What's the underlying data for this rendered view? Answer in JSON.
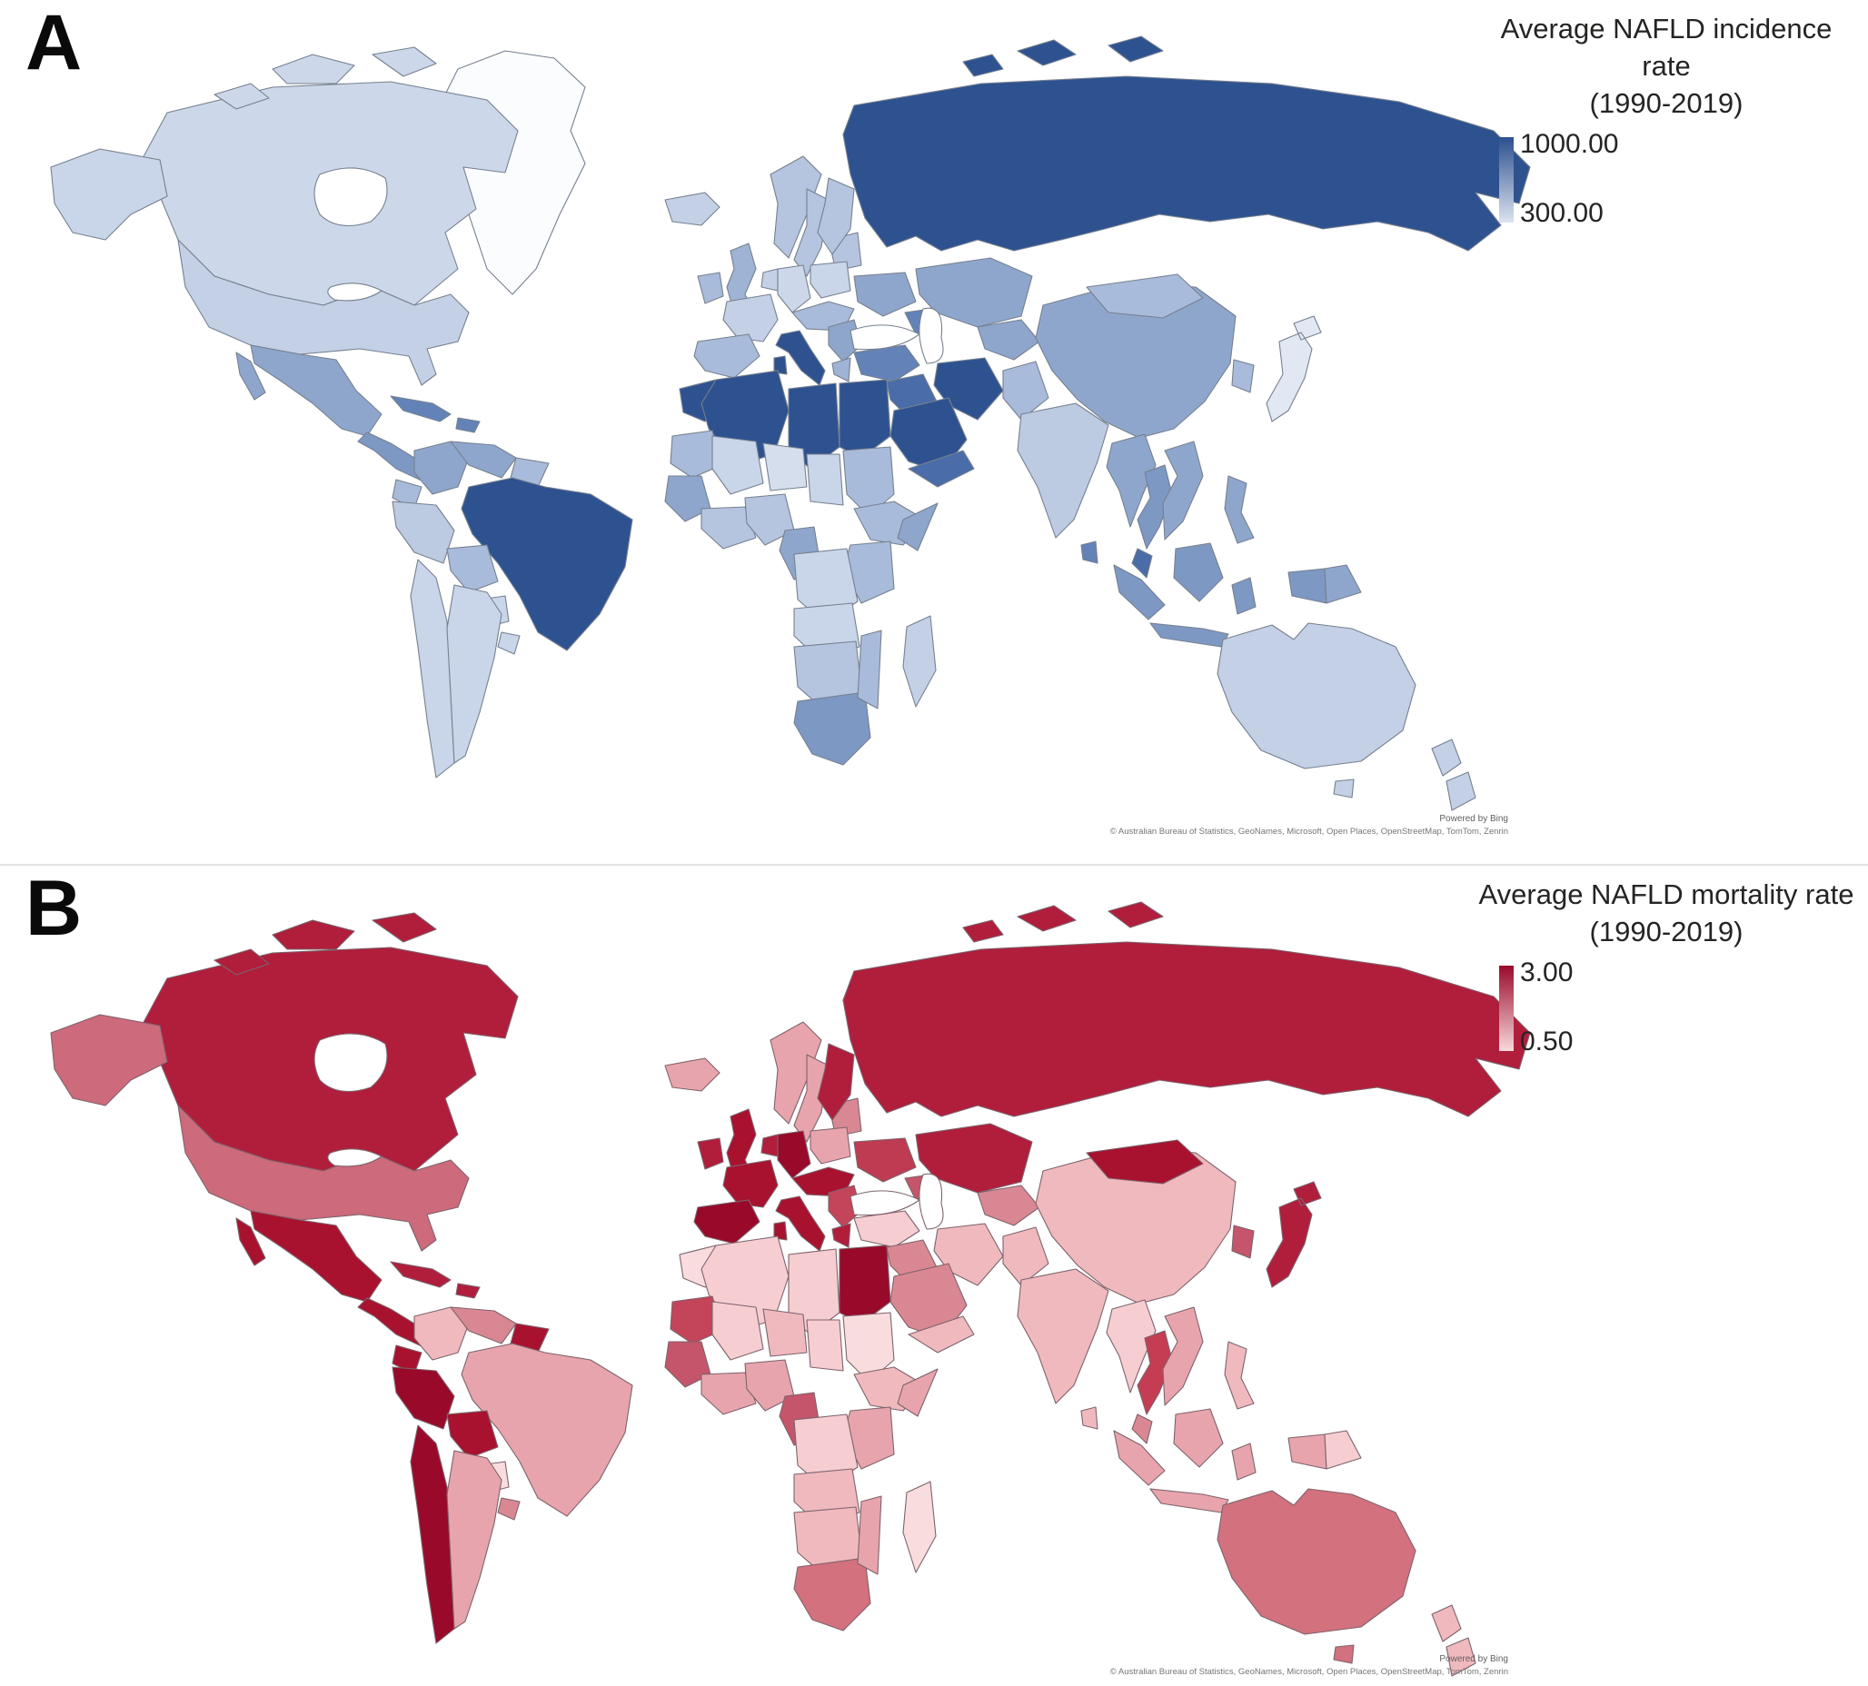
{
  "panels": {
    "a": {
      "label": "A",
      "border_color": "#76808f",
      "legend": {
        "title_line1": "Average NAFLD incidence rate",
        "title_line2": "(1990-2019)",
        "max_label": "1000.00",
        "min_label": "300.00",
        "colorbar_top": "#2B4F8E",
        "colorbar_bottom": "#DCE3F0"
      },
      "attribution": {
        "powered_by": "Powered by Bing",
        "copyright": "© Australian Bureau of Statistics, GeoNames, Microsoft, Open Places, OpenStreetMap, TomTom, Zenrin"
      }
    },
    "b": {
      "label": "B",
      "border_color": "#7d636c",
      "legend": {
        "title_line1": "Average NAFLD mortality rate",
        "title_line2": "(1990-2019)",
        "max_label": "3.00",
        "min_label": "0.50",
        "colorbar_top": "#99092A",
        "colorbar_bottom": "#F7D9DB"
      },
      "attribution": {
        "powered_by": "Powered by Bing",
        "copyright": "© Australian Bureau of Statistics, GeoNames, Microsoft, Open Places, OpenStreetMap, TomTom, Zenrin"
      }
    }
  },
  "map_regions": [
    {
      "id": "russia",
      "name": "Russia",
      "fill_a": "#2E5290",
      "fill_b": "#B01E3C"
    },
    {
      "id": "svalbard_arctic",
      "name": "Russian Arctic islands",
      "fill_a": "#2E5290",
      "fill_b": "#B01E3C"
    },
    {
      "id": "kazakhstan",
      "name": "Kazakhstan",
      "fill_a": "#8FA6CC",
      "fill_b": "#B01E3C"
    },
    {
      "id": "ukraine",
      "name": "Ukraine",
      "fill_a": "#8FA6CC",
      "fill_b": "#BE3B52"
    },
    {
      "id": "baltics_belarus",
      "name": "Baltics & Belarus",
      "fill_a": "#B5C4DF",
      "fill_b": "#D98893"
    },
    {
      "id": "caucasus",
      "name": "Caucasus",
      "fill_a": "#6383B8",
      "fill_b": "#C4556A"
    },
    {
      "id": "centralasia",
      "name": "Central Asia",
      "fill_a": "#8FA6CC",
      "fill_b": "#D98893"
    },
    {
      "id": "turkey",
      "name": "Turkey",
      "fill_a": "#6383B8",
      "fill_b": "#F6CDD1"
    },
    {
      "id": "syria_iraq",
      "name": "Syria & Iraq",
      "fill_a": "#4A6CA8",
      "fill_b": "#D98893"
    },
    {
      "id": "iran",
      "name": "Iran",
      "fill_a": "#2E5290",
      "fill_b": "#F0B9BE"
    },
    {
      "id": "afghan_pak",
      "name": "Afghanistan & Pakistan",
      "fill_a": "#A9BBDA",
      "fill_b": "#F0B9BE"
    },
    {
      "id": "saudi",
      "name": "Saudi Arabia",
      "fill_a": "#2E5290",
      "fill_b": "#D98893"
    },
    {
      "id": "yemen_oman",
      "name": "Yemen & Oman",
      "fill_a": "#4A6CA8",
      "fill_b": "#F0B9BE"
    },
    {
      "id": "china",
      "name": "China",
      "fill_a": "#8FA6CC",
      "fill_b": "#F0B9BE"
    },
    {
      "id": "mongolia",
      "name": "Mongolia",
      "fill_a": "#A9BBDA",
      "fill_b": "#A8122F"
    },
    {
      "id": "korea",
      "name": "Korea",
      "fill_a": "#A9BBDA",
      "fill_b": "#C4556A"
    },
    {
      "id": "japan",
      "name": "Japan",
      "fill_a": "#E2E8F3",
      "fill_b": "#B01E3C"
    },
    {
      "id": "india",
      "name": "India",
      "fill_a": "#BCCBE2",
      "fill_b": "#F0B9BE"
    },
    {
      "id": "srilanka",
      "name": "Sri Lanka",
      "fill_a": "#6383B8",
      "fill_b": "#F0B9BE"
    },
    {
      "id": "myanmar",
      "name": "Myanmar",
      "fill_a": "#8FA6CC",
      "fill_b": "#F6CDD1"
    },
    {
      "id": "thailand",
      "name": "Thailand",
      "fill_a": "#7E98C4",
      "fill_b": "#C43D52"
    },
    {
      "id": "vietnam_laos",
      "name": "Vietnam, Laos & Cambodia",
      "fill_a": "#8FA6CC",
      "fill_b": "#E8A4AC"
    },
    {
      "id": "malaysia",
      "name": "Malaysia",
      "fill_a": "#4A6CA8",
      "fill_b": "#D98893"
    },
    {
      "id": "indonesia",
      "name": "Indonesia",
      "fill_a": "#7E98C4",
      "fill_b": "#E8A4AC"
    },
    {
      "id": "png",
      "name": "Papua New Guinea",
      "fill_a": "#8FA6CC",
      "fill_b": "#F6CDD1"
    },
    {
      "id": "philippines",
      "name": "Philippines",
      "fill_a": "#8FA6CC",
      "fill_b": "#F0B9BE"
    },
    {
      "id": "australia",
      "name": "Australia",
      "fill_a": "#C4D0E6",
      "fill_b": "#D4717E"
    },
    {
      "id": "new_zealand",
      "name": "New Zealand",
      "fill_a": "#C4D0E6",
      "fill_b": "#F0B9BE"
    },
    {
      "id": "norway",
      "name": "Norway",
      "fill_a": "#B5C4DF",
      "fill_b": "#E8A4AC"
    },
    {
      "id": "sweden",
      "name": "Sweden",
      "fill_a": "#B5C4DF",
      "fill_b": "#E8A4AC"
    },
    {
      "id": "finland",
      "name": "Finland",
      "fill_a": "#B5C4DF",
      "fill_b": "#B01E3C"
    },
    {
      "id": "denmark",
      "name": "Denmark",
      "fill_a": "#C9D5E9",
      "fill_b": "#C4556A"
    },
    {
      "id": "iceland",
      "name": "Iceland",
      "fill_a": "#C4D0E6",
      "fill_b": "#E8A4AC"
    },
    {
      "id": "uk",
      "name": "United Kingdom",
      "fill_a": "#9FB3D5",
      "fill_b": "#A8122F"
    },
    {
      "id": "ireland",
      "name": "Ireland",
      "fill_a": "#A9BBDA",
      "fill_b": "#B01E3C"
    },
    {
      "id": "france",
      "name": "France",
      "fill_a": "#C4D0E6",
      "fill_b": "#A8122F"
    },
    {
      "id": "lowlands",
      "name": "Benelux",
      "fill_a": "#C4D0E6",
      "fill_b": "#B01E3C"
    },
    {
      "id": "germany",
      "name": "Germany",
      "fill_a": "#CCD7EA",
      "fill_b": "#99092A"
    },
    {
      "id": "poland",
      "name": "Poland",
      "fill_a": "#C9D5E9",
      "fill_b": "#E8A4AC"
    },
    {
      "id": "centraleu",
      "name": "Central Europe",
      "fill_a": "#A9BBDA",
      "fill_b": "#A8122F"
    },
    {
      "id": "iberia",
      "name": "Spain & Portugal",
      "fill_a": "#A9BBDA",
      "fill_b": "#99092A"
    },
    {
      "id": "italy",
      "name": "Italy",
      "fill_a": "#2E5290",
      "fill_b": "#A8122F"
    },
    {
      "id": "balkans",
      "name": "Balkans",
      "fill_a": "#8FA6CC",
      "fill_b": "#C4445A"
    },
    {
      "id": "greece",
      "name": "Greece",
      "fill_a": "#9FB3D5",
      "fill_b": "#B01E3C"
    },
    {
      "id": "morocco",
      "name": "Morocco",
      "fill_a": "#2E5290",
      "fill_b": "#F9DCDE"
    },
    {
      "id": "algeria",
      "name": "Algeria",
      "fill_a": "#2E5290",
      "fill_b": "#F6CDD1"
    },
    {
      "id": "libya",
      "name": "Libya",
      "fill_a": "#2E5290",
      "fill_b": "#F6CDD1"
    },
    {
      "id": "egypt",
      "name": "Egypt",
      "fill_a": "#2E5290",
      "fill_b": "#99092A"
    },
    {
      "id": "mauritania",
      "name": "Mauritania",
      "fill_a": "#A9BBDA",
      "fill_b": "#C4445A"
    },
    {
      "id": "mali",
      "name": "Mali",
      "fill_a": "#C9D5E9",
      "fill_b": "#F6CDD1"
    },
    {
      "id": "niger",
      "name": "Niger",
      "fill_a": "#D5DEED",
      "fill_b": "#F0B9BE"
    },
    {
      "id": "chad",
      "name": "Chad",
      "fill_a": "#C9D5E9",
      "fill_b": "#F6CDD1"
    },
    {
      "id": "sudan",
      "name": "Sudan",
      "fill_a": "#A9BBDA",
      "fill_b": "#F9DCDE"
    },
    {
      "id": "senegal_guinea",
      "name": "Senegal & Guinea",
      "fill_a": "#8FA6CC",
      "fill_b": "#C4556A"
    },
    {
      "id": "wafrica",
      "name": "West Africa coast",
      "fill_a": "#B5C4DF",
      "fill_b": "#E8A4AC"
    },
    {
      "id": "nigeria",
      "name": "Nigeria",
      "fill_a": "#B5C4DF",
      "fill_b": "#E8A4AC"
    },
    {
      "id": "cameroon_gabon",
      "name": "Cameroon & Gabon",
      "fill_a": "#8FA6CC",
      "fill_b": "#C4556A"
    },
    {
      "id": "ethiopia",
      "name": "Ethiopia",
      "fill_a": "#A9BBDA",
      "fill_b": "#F0B9BE"
    },
    {
      "id": "somalia",
      "name": "Somalia",
      "fill_a": "#8FA6CC",
      "fill_b": "#E8A4AC"
    },
    {
      "id": "kenya_tz",
      "name": "Kenya & Tanzania",
      "fill_a": "#A9BBDA",
      "fill_b": "#E8A4AC"
    },
    {
      "id": "drc",
      "name": "DR Congo",
      "fill_a": "#C9D5E9",
      "fill_b": "#F6CDD1"
    },
    {
      "id": "angola_zambia",
      "name": "Angola & Zambia",
      "fill_a": "#C9D5E9",
      "fill_b": "#F0B9BE"
    },
    {
      "id": "namibia_botswana",
      "name": "Namibia & Botswana",
      "fill_a": "#B5C4DF",
      "fill_b": "#F0B9BE"
    },
    {
      "id": "south_africa",
      "name": "South Africa",
      "fill_a": "#7E98C4",
      "fill_b": "#D4717E"
    },
    {
      "id": "mozambique",
      "name": "Mozambique",
      "fill_a": "#A9BBDA",
      "fill_b": "#E8A4AC"
    },
    {
      "id": "madagascar",
      "name": "Madagascar",
      "fill_a": "#C4D0E6",
      "fill_b": "#F9DCDE"
    },
    {
      "id": "greenland",
      "name": "Greenland",
      "fill_a": "#FBFCFE",
      "fill_b": null
    },
    {
      "id": "canada",
      "name": "Canada",
      "fill_a": "#CCD7EA",
      "fill_b": "#B01E3C"
    },
    {
      "id": "arctic_islands",
      "name": "Canadian Arctic Archipelago",
      "fill_a": "#CCD7EA",
      "fill_b": "#B01E3C"
    },
    {
      "id": "alaska",
      "name": "Alaska (United States)",
      "fill_a": "#C9D5E9",
      "fill_b": "#CD6A7B"
    },
    {
      "id": "usa",
      "name": "United States",
      "fill_a": "#C4D0E6",
      "fill_b": "#CD6A7B"
    },
    {
      "id": "mexico",
      "name": "Mexico",
      "fill_a": "#8FA6CC",
      "fill_b": "#A8122F"
    },
    {
      "id": "camerica",
      "name": "Central America",
      "fill_a": "#7E98C4",
      "fill_b": "#A8122F"
    },
    {
      "id": "caribbean",
      "name": "Caribbean",
      "fill_a": "#6383B8",
      "fill_b": "#B01E3C"
    },
    {
      "id": "colombia",
      "name": "Colombia",
      "fill_a": "#8FA6CC",
      "fill_b": "#F0B9BE"
    },
    {
      "id": "venezuela",
      "name": "Venezuela",
      "fill_a": "#8FA6CC",
      "fill_b": "#D98893"
    },
    {
      "id": "guyanas",
      "name": "Guyanas",
      "fill_a": "#A9BBDA",
      "fill_b": "#A8122F"
    },
    {
      "id": "ecuador",
      "name": "Ecuador",
      "fill_a": "#A9BBDA",
      "fill_b": "#A8122F"
    },
    {
      "id": "peru",
      "name": "Peru",
      "fill_a": "#BCCBE2",
      "fill_b": "#99092A"
    },
    {
      "id": "brazil",
      "name": "Brazil",
      "fill_a": "#2E5290",
      "fill_b": "#E8A4AC"
    },
    {
      "id": "bolivia",
      "name": "Bolivia",
      "fill_a": "#A9BBDA",
      "fill_b": "#A8122F"
    },
    {
      "id": "paraguay",
      "name": "Paraguay",
      "fill_a": "#C9D5E9",
      "fill_b": "#F9DCDE"
    },
    {
      "id": "uruguay",
      "name": "Uruguay",
      "fill_a": "#C9D5E9",
      "fill_b": "#D98893"
    },
    {
      "id": "chile",
      "name": "Chile",
      "fill_a": "#C9D5E9",
      "fill_b": "#99092A"
    },
    {
      "id": "argentina",
      "name": "Argentina",
      "fill_a": "#C9D5E9",
      "fill_b": "#E8A4AC"
    },
    {
      "id": "hudson_bay",
      "name": "Hudson Bay",
      "fill_a": "#FFFFFF",
      "fill_b": "#FFFFFF"
    },
    {
      "id": "great_lakes",
      "name": "Great Lakes",
      "fill_a": "#FFFFFF",
      "fill_b": "#FFFFFF"
    },
    {
      "id": "black_sea",
      "name": "Black Sea",
      "fill_a": "#FFFFFF",
      "fill_b": "#FFFFFF"
    },
    {
      "id": "caspian_sea",
      "name": "Caspian Sea",
      "fill_a": "#FFFFFF",
      "fill_b": "#FFFFFF"
    }
  ]
}
